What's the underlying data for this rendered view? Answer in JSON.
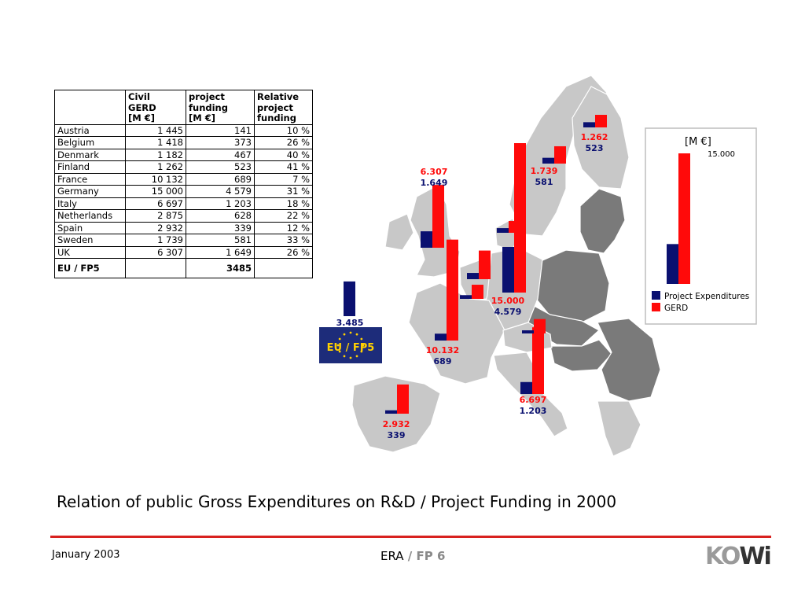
{
  "table": {
    "headers": [
      "",
      "Civil\nGERD\n[M €]",
      "project\nfunding\n[M €]",
      "Relative\nproject\nfunding"
    ],
    "rows": [
      [
        "Austria",
        "1 445",
        "141",
        "10 %"
      ],
      [
        "Belgium",
        "1 418",
        "373",
        "26 %"
      ],
      [
        "Denmark",
        "1 182",
        "467",
        "40 %"
      ],
      [
        "Finland",
        "1 262",
        "523",
        "41 %"
      ],
      [
        "France",
        "10 132",
        "689",
        "7 %"
      ],
      [
        "Germany",
        "15 000",
        "4 579",
        "31 %"
      ],
      [
        "Italy",
        "6 697",
        "1 203",
        "18 %"
      ],
      [
        "Netherlands",
        "2 875",
        "628",
        "22 %"
      ],
      [
        "Spain",
        "2 932",
        "339",
        "12 %"
      ],
      [
        "Sweden",
        "1 739",
        "581",
        "33 %"
      ],
      [
        "UK",
        "6 307",
        "1 649",
        "26 %"
      ]
    ],
    "total": [
      "EU / FP5",
      "",
      "3485",
      ""
    ]
  },
  "chart_data": {
    "type": "bar",
    "title": "Relation of public Gross Expenditures on R&D / Project Funding in 2000",
    "unit": "[M €]",
    "scale_reference": "15.000",
    "series": [
      {
        "name": "Project Expenditures",
        "color": "#0a1070"
      },
      {
        "name": "GERD",
        "color": "#ff0a0a"
      }
    ],
    "countries": [
      {
        "name": "Austria",
        "gerd": 1445,
        "project": 141
      },
      {
        "name": "Belgium",
        "gerd": 1418,
        "project": 373
      },
      {
        "name": "Denmark",
        "gerd": 1182,
        "project": 467
      },
      {
        "name": "Finland",
        "gerd": 1262,
        "project": 523,
        "gerd_label": "1.262",
        "project_label": "523"
      },
      {
        "name": "France",
        "gerd": 10132,
        "project": 689,
        "gerd_label": "10.132",
        "project_label": "689"
      },
      {
        "name": "Germany",
        "gerd": 15000,
        "project": 4579,
        "gerd_label": "15.000",
        "project_label": "4.579"
      },
      {
        "name": "Italy",
        "gerd": 6697,
        "project": 1203,
        "gerd_label": "6.697",
        "project_label": "1.203"
      },
      {
        "name": "Netherlands",
        "gerd": 2875,
        "project": 628
      },
      {
        "name": "Spain",
        "gerd": 2932,
        "project": 339,
        "gerd_label": "2.932",
        "project_label": "339"
      },
      {
        "name": "Sweden",
        "gerd": 1739,
        "project": 581,
        "gerd_label": "1.739",
        "project_label": "581"
      },
      {
        "name": "UK",
        "gerd": 6307,
        "project": 1649,
        "gerd_label": "6.307",
        "project_label": "1.649"
      }
    ],
    "eu_fp5": {
      "label": "EU / FP5",
      "project": 3485,
      "project_label": "3.485"
    },
    "legend": {
      "reference_gerd": 15000,
      "reference_project": 4579
    }
  },
  "footer": {
    "date": "January 2003",
    "era": "ERA",
    "fp": " / FP 6",
    "logo_ko": "KO",
    "logo_wi": "Wi"
  },
  "colors": {
    "gerd": "#ff0a0a",
    "project": "#0a1070",
    "eu_grey": "#c8c8c8",
    "non_eu_grey": "#7a7a7a",
    "rule": "#d8211f"
  }
}
